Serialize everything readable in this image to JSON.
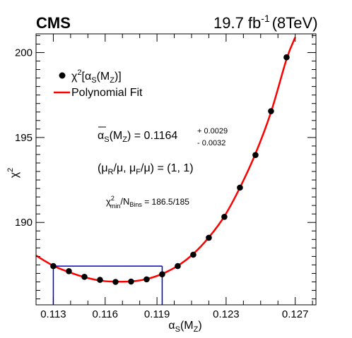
{
  "header": {
    "experiment": "CMS",
    "lumi_value": "19.7 fb",
    "lumi_exp": "-1",
    "energy": "(8TeV)"
  },
  "legend": {
    "points_label": {
      "chi": "χ",
      "sq": "2",
      "open": "[α",
      "s_sub": "S",
      "mid": "(M",
      "z_sub": "Z",
      "close": ")]"
    },
    "fit_label": "Polynomial Fit"
  },
  "annotations": {
    "alpha_result": {
      "alpha": "α",
      "s_sub": "S",
      "mid": "(M",
      "z_sub": "Z",
      "eq": ") = 0.1164",
      "up": "+ 0.0029",
      "down": "- 0.0032"
    },
    "scales": {
      "text": "(μ",
      "r_sub": "R",
      "mid1": "/μ, μ",
      "f_sub": "F",
      "mid2": "/μ) = (1, 1)"
    },
    "chi2min": {
      "chi": "χ",
      "sq": "2",
      "min_sub": "min",
      "mid": "/N",
      "bins_sub": "Bins",
      "val": " = 186.5/185"
    }
  },
  "axes": {
    "x": {
      "alpha": "α",
      "s_sub": "S",
      "mid": "(M",
      "z_sub": "Z",
      "close": ")"
    },
    "y": {
      "chi": "χ",
      "sq": "2"
    }
  },
  "chart_data": {
    "type": "scatter",
    "xlim": [
      0.112,
      0.1282
    ],
    "ylim": [
      185.15,
      201.1
    ],
    "x_ticks": [
      "0.113",
      "0.116",
      "0.119",
      "0.123",
      "0.127"
    ],
    "x_tick_values": [
      0.113,
      0.116,
      0.119,
      0.123,
      0.127
    ],
    "y_ticks": [
      "190",
      "195",
      "200"
    ],
    "y_tick_values": [
      190,
      195,
      200
    ],
    "points": {
      "x": [
        0.113,
        0.1139,
        0.1148,
        0.1157,
        0.1166,
        0.1175,
        0.1184,
        0.1193,
        0.1202,
        0.1211,
        0.122,
        0.1229,
        0.1238,
        0.1247,
        0.1256,
        0.1265
      ],
      "y": [
        187.43,
        187.13,
        186.8,
        186.62,
        186.5,
        186.52,
        186.65,
        186.95,
        187.43,
        188.1,
        189.1,
        190.33,
        192.05,
        193.97,
        196.55,
        199.72
      ],
      "color": "#000000"
    },
    "fit_curve": {
      "x": [
        0.112,
        0.113,
        0.1139,
        0.1148,
        0.1157,
        0.1164,
        0.1175,
        0.1184,
        0.1193,
        0.1202,
        0.1211,
        0.122,
        0.1229,
        0.1238,
        0.1247,
        0.1256,
        0.1265,
        0.127
      ],
      "y": [
        188.05,
        187.45,
        187.08,
        186.78,
        186.58,
        186.52,
        186.53,
        186.67,
        186.97,
        187.45,
        188.15,
        189.12,
        190.36,
        192.05,
        194.05,
        196.5,
        199.62,
        200.9
      ],
      "color": "#ff0000"
    },
    "interval_box": {
      "x_low": 0.113,
      "x_high": 0.1193,
      "y_level": 187.43,
      "color": "#0000cc"
    }
  }
}
